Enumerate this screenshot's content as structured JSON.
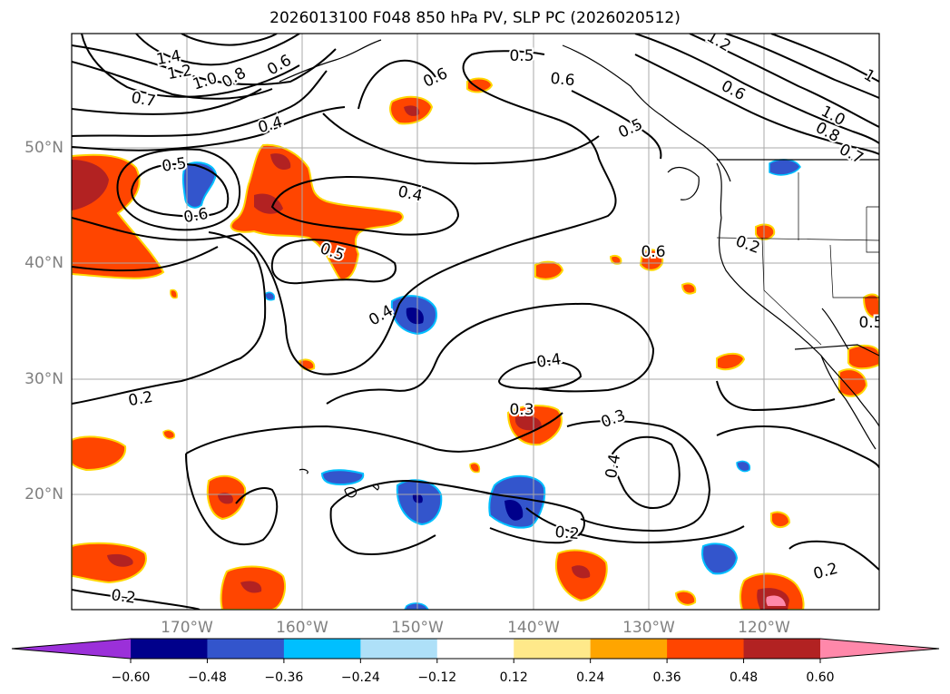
{
  "title": "2026013100 F048 850 hPa PV, SLP PC (2026020512)",
  "lat_labels": [
    "50°N",
    "40°N",
    "30°N",
    "20°N"
  ],
  "lon_labels": [
    "170°W",
    "160°W",
    "150°W",
    "140°W",
    "130°W",
    "120°W"
  ],
  "contour_labels": [
    "1.4",
    "1.2",
    "1.0",
    "0.8",
    "0.7",
    "0.6",
    "0.4",
    "0.5",
    "0.6",
    "0.5",
    "0.6",
    "0.6",
    "0.5",
    "1.2",
    "1",
    "0.6",
    "1.0",
    "0.8",
    "0.7",
    "0.5",
    "0.6",
    "0.4",
    "0.5",
    "0.4",
    "0.2",
    "0.4",
    "0.3",
    "0.3",
    "0.4",
    "0.2",
    "0.2",
    "0.2",
    "0.",
    "0.2"
  ],
  "colorbar": {
    "ticks": [
      "−0.60",
      "−0.48",
      "−0.36",
      "−0.24",
      "−0.12",
      "0.12",
      "0.24",
      "0.36",
      "0.48",
      "0.60"
    ],
    "colors": [
      "#9b30d9",
      "#00008b",
      "#3355cc",
      "#00bfff",
      "#aee0f8",
      "#ffffff",
      "#ffe98a",
      "#ffa500",
      "#ff4500",
      "#b22222",
      "#ff88aa"
    ]
  }
}
